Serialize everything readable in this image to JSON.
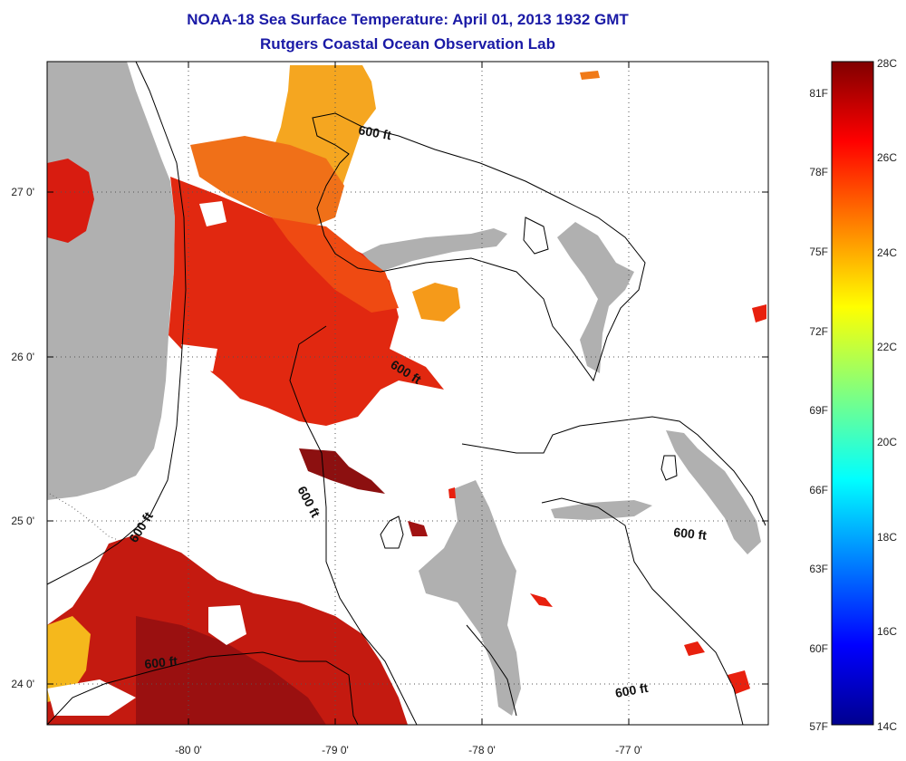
{
  "title": "NOAA-18 Sea Surface Temperature:  April 01, 2013 1932 GMT",
  "subtitle": "Rutgers Coastal Ocean Observation Lab",
  "x_ticks": [
    "-80 0'",
    "-79 0'",
    "-78 0'",
    "-77 0'"
  ],
  "y_ticks": [
    "27 0'",
    "26 0'",
    "25 0'",
    "24 0'"
  ],
  "contour_label": "600 ft",
  "colorbar": {
    "celsius_labels": [
      "28C",
      "26C",
      "24C",
      "22C",
      "20C",
      "18C",
      "16C",
      "14C"
    ],
    "fahrenheit_labels": [
      "81F",
      "78F",
      "75F",
      "72F",
      "69F",
      "66F",
      "63F",
      "60F",
      "57F"
    ],
    "colormap": "jet"
  },
  "colors": {
    "land": "#b0b0b0",
    "ocean_background": "#ffffff",
    "title_color": "#1a1aa6",
    "sst_dark_red": "#8c0c0c",
    "sst_red": "#e0200c",
    "sst_orange": "#f59a1a"
  }
}
